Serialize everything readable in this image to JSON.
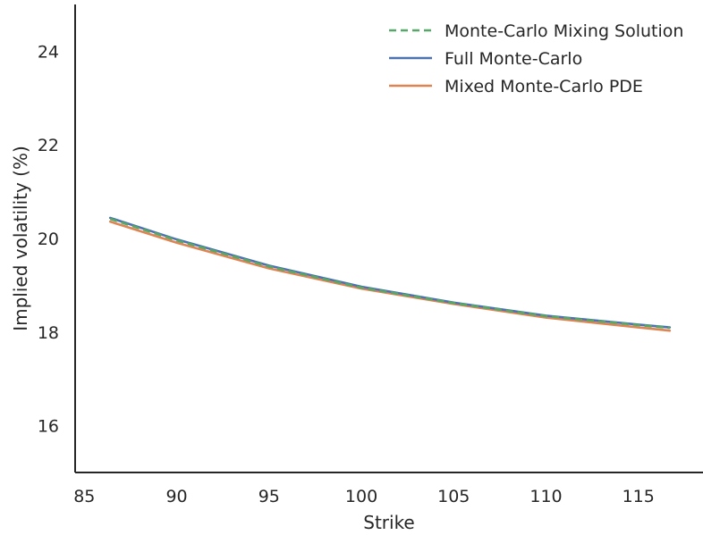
{
  "chart_data": {
    "type": "line",
    "xlabel": "Strike",
    "ylabel": "Implied volatility (%)",
    "xlim": [
      84.5,
      118.5
    ],
    "ylim": [
      15.0,
      25.0
    ],
    "xticks": [
      85,
      90,
      95,
      100,
      105,
      110,
      115
    ],
    "yticks": [
      16,
      18,
      20,
      22,
      24
    ],
    "grid": false,
    "legend_position": "top-right",
    "x": [
      86.4,
      90,
      95,
      100,
      105,
      110,
      115,
      116.7
    ],
    "series": [
      {
        "name": "Monte-Carlo Mixing Solution",
        "color": "#55a868",
        "dash": "dashed",
        "values": [
          20.42,
          19.96,
          19.4,
          18.95,
          18.62,
          18.34,
          18.15,
          18.09
        ]
      },
      {
        "name": "Full Monte-Carlo",
        "color": "#4c72b0",
        "dash": "solid",
        "values": [
          20.44,
          19.98,
          19.42,
          18.97,
          18.63,
          18.35,
          18.16,
          18.1
        ]
      },
      {
        "name": "Mixed Monte-Carlo PDE",
        "color": "#dd8452",
        "dash": "solid",
        "values": [
          20.36,
          19.91,
          19.36,
          18.93,
          18.6,
          18.31,
          18.1,
          18.03
        ]
      }
    ]
  }
}
